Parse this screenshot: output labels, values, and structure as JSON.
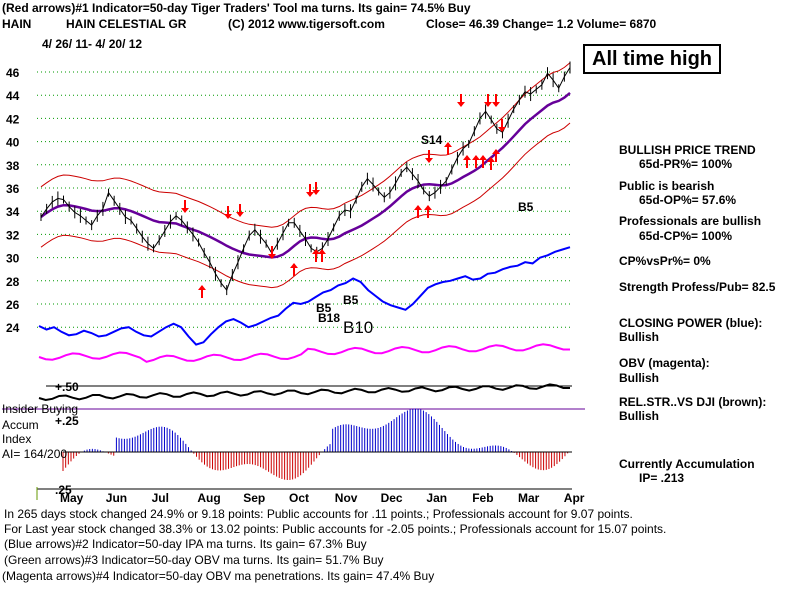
{
  "header": {
    "line1": "(Red arrows)#1 Indicator=50-day Tiger Traders' Tool ma turns. Its gain= 74.5% Buy",
    "ticker": "HAIN",
    "company": "HAIN CELESTIAL GR",
    "copyright": "(C) 2012 www.tigersoft.com",
    "quote": "Close=  46.39  Change= 1.2 Volume= 6870",
    "date_range": "4/ 26/ 11- 4/ 20/ 12"
  },
  "callout": "All time high",
  "chart_data": {
    "type": "line",
    "title": "HAIN CELESTIAL GR",
    "y_ticks": [
      "46",
      "44",
      "42",
      "40",
      "38",
      "36",
      "34",
      "32",
      "30",
      "28",
      "26",
      "24"
    ],
    "months": [
      "May",
      "Jun",
      "Jul",
      "Aug",
      "Sep",
      "Oct",
      "Nov",
      "Dec",
      "Jan",
      "Feb",
      "Mar",
      "Apr"
    ],
    "price": [
      33.5,
      34.2,
      34.8,
      35.1,
      35.0,
      34.4,
      33.9,
      33.6,
      33.2,
      32.8,
      33.6,
      34.2,
      35.6,
      34.9,
      34.2,
      33.5,
      33.2,
      32.5,
      31.8,
      31.2,
      30.8,
      31.5,
      32.3,
      33.1,
      33.6,
      33.2,
      32.6,
      32.0,
      31.3,
      30.4,
      29.6,
      28.6,
      27.8,
      27.2,
      28.5,
      29.6,
      30.8,
      31.9,
      32.4,
      31.8,
      31.2,
      30.4,
      31.2,
      32.1,
      33.0,
      33.0,
      32.3,
      31.6,
      30.8,
      30.5,
      30.8,
      31.6,
      32.6,
      33.6,
      34.1,
      34.0,
      35.0,
      36.1,
      36.8,
      36.3,
      35.7,
      35.2,
      35.6,
      36.4,
      37.3,
      37.8,
      37.2,
      36.6,
      35.8,
      35.3,
      35.6,
      36.1,
      36.6,
      37.6,
      38.6,
      39.4,
      39.8,
      40.9,
      42.0,
      42.6,
      41.9,
      41.1,
      40.8,
      41.8,
      42.8,
      43.6,
      44.3,
      44.1,
      44.5,
      44.9,
      45.9,
      45.3,
      44.6,
      45.6,
      46.39
    ],
    "ma50_label": "50-day ma",
    "closing_power": [
      24.1,
      23.8,
      24.0,
      23.6,
      23.3,
      23.4,
      23.7,
      23.5,
      23.2,
      23.3,
      23.6,
      23.9,
      24.0,
      23.6,
      23.3,
      23.2,
      23.6,
      24.0,
      24.3,
      24.0,
      23.2,
      22.5,
      22.7,
      23.4,
      24.0,
      24.5,
      24.7,
      24.4,
      24.0,
      24.2,
      24.5,
      24.8,
      25.0,
      25.6,
      26.1,
      26.0,
      26.2,
      26.6,
      27.0,
      27.2,
      27.6,
      27.8,
      28.2,
      27.9,
      27.2,
      26.7,
      26.2,
      25.9,
      25.7,
      25.5,
      26.0,
      26.7,
      27.4,
      27.7,
      27.9,
      28.0,
      28.2,
      28.4,
      28.1,
      28.2,
      28.6,
      28.7,
      29.0,
      29.2,
      29.3,
      29.6,
      29.5,
      30.0,
      30.2,
      30.5,
      30.7,
      30.9
    ],
    "obv_label": "OBV",
    "rs_label": "REL.STR. VS DJI",
    "accum_ticks": [
      "+.50",
      "+.25",
      ".25"
    ]
  },
  "annotations": {
    "s14": "S14",
    "b5a": "B5",
    "b5b": "B5",
    "b18": "B18",
    "b5c": "B5",
    "b10": "B10"
  },
  "left_labels": {
    "insider": "Insider Buying",
    "accum": "Accum",
    "index": "Index",
    "ai": "AI= 164/200",
    "tick50": "+.50",
    "tick25": "+.25",
    "tickm25": ".25"
  },
  "right_panel": {
    "trend_title": "BULLISH PRICE TREND",
    "trend_value": "65d-PR%= 100%",
    "public_title": "Public is bearish",
    "public_value": "65d-OP%= 57.6%",
    "pros_title": "Professionals are bullish",
    "pros_value": "65d-CP%= 100%",
    "cpvspr": "CP%vsPr%=  0%",
    "strength": "Strength Profess/Pub= 82.5",
    "cp_title": "CLOSING POWER (blue):",
    "cp_value": "Bullish",
    "obv_title": "OBV (magenta):",
    "obv_value": "Bullish",
    "rs_title": "REL.STR..VS DJI (brown):",
    "rs_value": "Bullish",
    "accum_title": "Currently Accumulation",
    "accum_value": "IP=  .213"
  },
  "footer": {
    "line1": "In 265 days stock changed  24.9% or  9.18 points:  Public accounts for  .11 points.;  Professionals account for  9.07 points.",
    "line2": "For Last year stock changed  38.3% or  13.02 points:  Public accounts for -2.05 points.;  Professionals account for  15.07 points.",
    "line3": "(Blue arrows)#2 Indicator=50-day IPA ma turns. Its gain= 67.3% Buy",
    "line4": "(Green arrows)#3 Indicator=50-day OBV ma turns. Its gain= 51.7% Buy",
    "line5": "(Magenta arrows)#4 Indicator=50-day OBV ma penetrations. Its gain= 47.4% Buy"
  },
  "colors": {
    "price": "#000000",
    "band": "#cc0000",
    "ma": "#660099",
    "closing_power": "#0000ff",
    "obv": "#ff00ff",
    "rs": "#6b2a00",
    "accum_pos": "#0000cc",
    "accum_neg": "#cc0000",
    "grid": "#009900"
  }
}
